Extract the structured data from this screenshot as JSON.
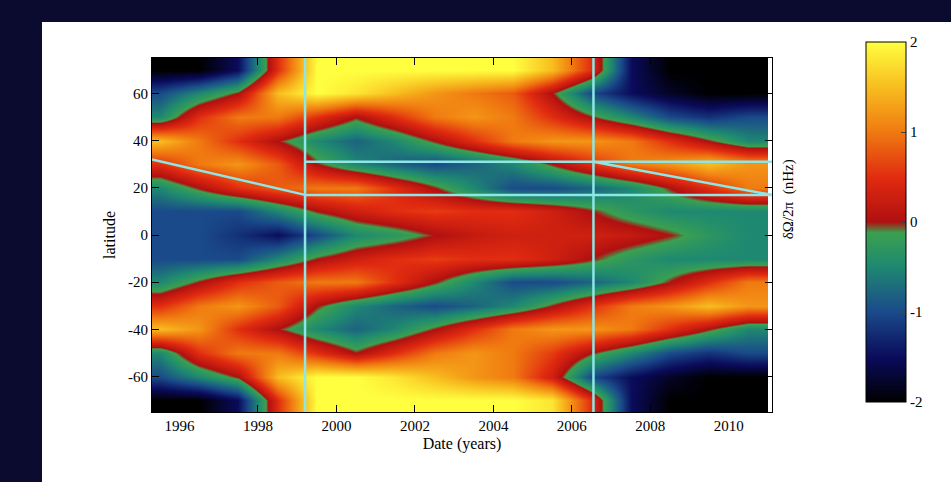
{
  "chart_data": {
    "type": "heatmap",
    "x_label": "Date (years)",
    "y_label": "latitude",
    "x": [
      1995.5,
      1996.5,
      1997.5,
      1998.5,
      1999.5,
      2000.5,
      2001.5,
      2002.5,
      2003.5,
      2004.5,
      2005.5,
      2006.5,
      2007.5,
      2008.5,
      2009.5,
      2010.5
    ],
    "y": [
      -70,
      -60,
      -50,
      -40,
      -30,
      -20,
      -10,
      0,
      10,
      20,
      30,
      40,
      50,
      60,
      70
    ],
    "cells": [
      [
        -2,
        -2,
        -1.5,
        0.5,
        2,
        2,
        2,
        2,
        2,
        2,
        1.8,
        0.5,
        -1.5,
        -2,
        -2,
        -2
      ],
      [
        -1,
        -0.5,
        0,
        1.5,
        2,
        2,
        1.8,
        1.5,
        1.2,
        1,
        0.3,
        -1,
        -1.5,
        -1.8,
        -2,
        -2
      ],
      [
        -0.5,
        0.5,
        1,
        1,
        0.5,
        0,
        0.5,
        1,
        1.2,
        1,
        0.6,
        0,
        -0.5,
        -1,
        -1.2,
        -1
      ],
      [
        1.5,
        1.2,
        0.5,
        0,
        -0.5,
        -0.8,
        -0.5,
        0,
        0.5,
        1,
        1.2,
        1.2,
        1,
        0.5,
        0,
        -0.5
      ],
      [
        0.5,
        1,
        1.2,
        0.8,
        0,
        -0.5,
        -0.8,
        -1,
        -0.8,
        -0.5,
        0,
        0.5,
        1,
        1.2,
        1.5,
        1.2
      ],
      [
        -0.5,
        0,
        0.5,
        0.8,
        1,
        1,
        0.5,
        0,
        -0.5,
        -1,
        -1,
        -0.8,
        -0.5,
        0,
        0.5,
        1
      ],
      [
        -1,
        -1,
        -1,
        -0.5,
        0,
        0.3,
        0.5,
        0.6,
        0.5,
        0.5,
        0.3,
        0,
        -0.3,
        -0.5,
        -0.5,
        -0.5
      ],
      [
        -1,
        -1,
        -1.2,
        -1.5,
        -1,
        -0.5,
        -0.3,
        0,
        0.2,
        0.3,
        0.3,
        0.3,
        0.2,
        0,
        -0.3,
        -0.5
      ],
      [
        -1,
        -1,
        -1,
        -0.5,
        0,
        0.3,
        0.5,
        0.6,
        0.5,
        0.5,
        0.3,
        0,
        -0.3,
        -0.5,
        -0.5,
        -0.5
      ],
      [
        -0.5,
        0,
        0.5,
        0.8,
        1,
        1,
        0.5,
        0,
        -0.5,
        -1,
        -1,
        -0.8,
        -0.5,
        0,
        0.5,
        1
      ],
      [
        0.5,
        1,
        1.2,
        0.8,
        0,
        -0.5,
        -0.8,
        -1,
        -0.8,
        -0.5,
        0,
        0.5,
        1,
        1.2,
        1.5,
        1.2
      ],
      [
        1.5,
        1,
        0.5,
        0,
        -0.5,
        -0.8,
        -0.5,
        0,
        0.5,
        1,
        1.2,
        1.2,
        1,
        0.5,
        0,
        -0.5
      ],
      [
        -0.5,
        0.5,
        1,
        1,
        0.5,
        0,
        0.5,
        1,
        1.2,
        1,
        0.5,
        0,
        -0.5,
        -1,
        -1.2,
        -1
      ],
      [
        -1,
        -0.5,
        0,
        1.5,
        2,
        1.8,
        1.5,
        1.2,
        1,
        0.8,
        0,
        -1,
        -1.5,
        -1.8,
        -2,
        -2
      ],
      [
        -2,
        -2,
        -1.5,
        0.5,
        2,
        2,
        2,
        2,
        2,
        2,
        1.5,
        0.5,
        -1.5,
        -2,
        -2,
        -2
      ]
    ],
    "xlim": [
      1995.3,
      2011.1
    ],
    "xticks": [
      1996,
      1998,
      2000,
      2002,
      2004,
      2006,
      2008,
      2010
    ],
    "ylim": [
      -75,
      75
    ],
    "yticks": [
      -60,
      -40,
      -20,
      0,
      20,
      40,
      60
    ],
    "colorbar": {
      "range": [
        -2,
        2
      ],
      "ticks": [
        -2,
        -1,
        0,
        1,
        2
      ],
      "label": "δΩ/2π  (nHz)"
    },
    "lines": [
      {
        "x": [
          1999.2,
          1999.2
        ],
        "y": [
          -75,
          75
        ],
        "color": "#8ee6e6"
      },
      {
        "x": [
          2006.55,
          2006.55
        ],
        "y": [
          -75,
          75
        ],
        "color": "#8ee6e6"
      },
      {
        "x": [
          1999.2,
          2011.1
        ],
        "y": [
          31,
          31
        ],
        "color": "#8ee6e6"
      },
      {
        "x": [
          1999.2,
          2011.1
        ],
        "y": [
          17,
          17
        ],
        "color": "#8ee6e6"
      },
      {
        "x": [
          1995.3,
          1999.2
        ],
        "y": [
          32,
          17
        ],
        "color": "#8ee6e6"
      },
      {
        "x": [
          2006.55,
          2011.1
        ],
        "y": [
          31,
          17
        ],
        "color": "#8ee6e6"
      }
    ],
    "grid": false
  }
}
